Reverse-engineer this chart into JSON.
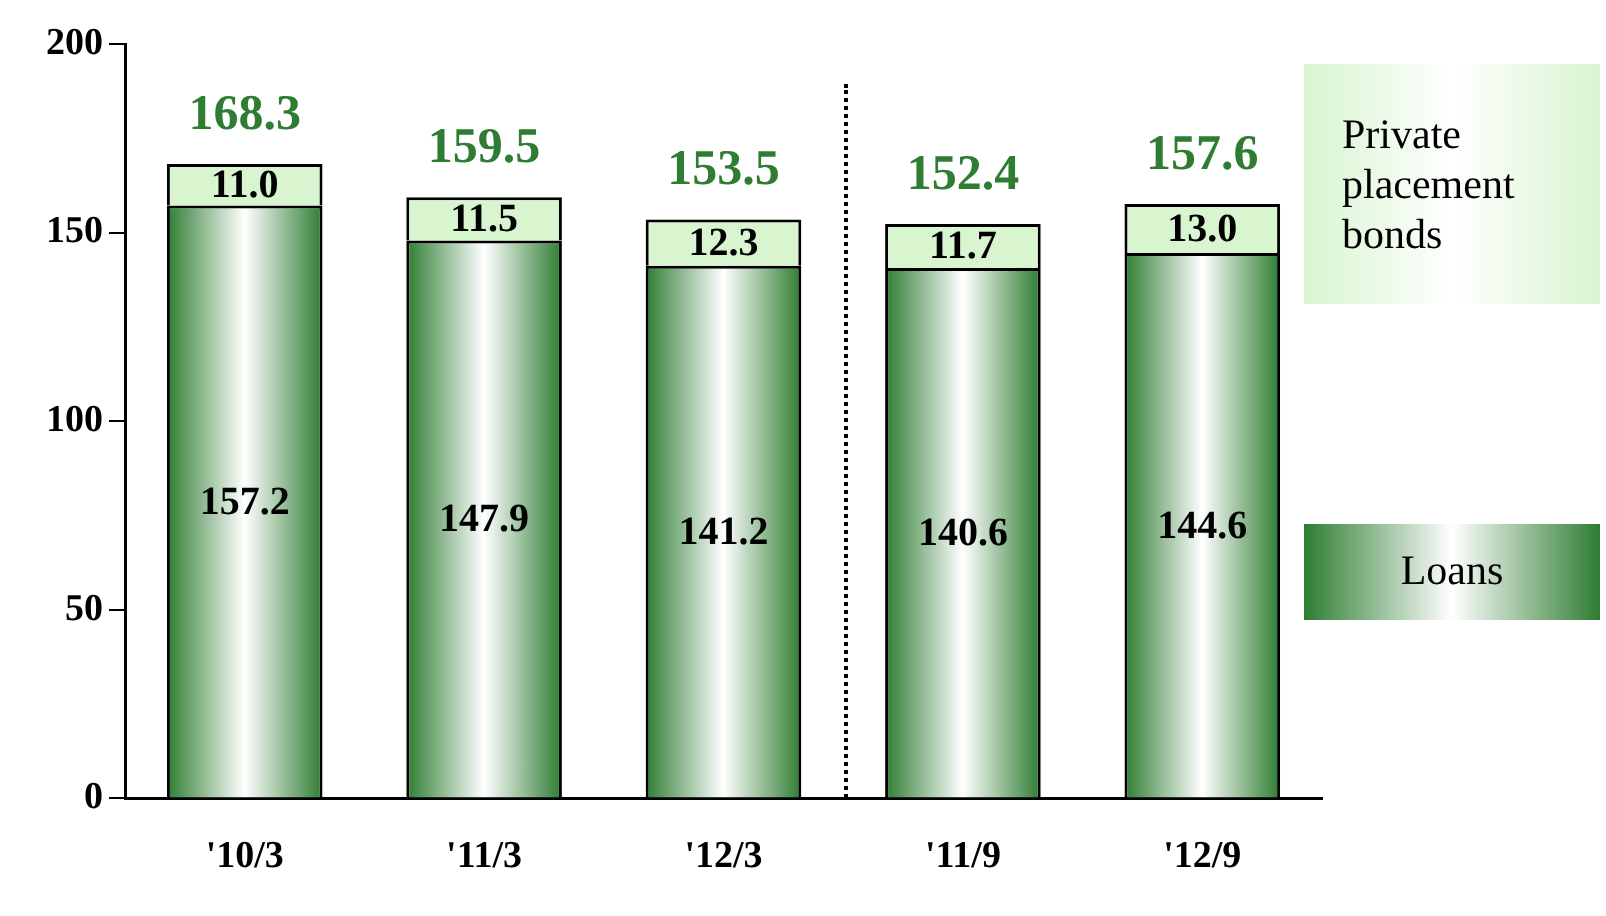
{
  "chart_data": {
    "type": "bar",
    "stacked": true,
    "categories": [
      "'10/3",
      "'11/3",
      "'12/3",
      "'11/9",
      "'12/9"
    ],
    "series": [
      {
        "name": "Loans",
        "color": "#2e7d32",
        "values": [
          157.2,
          147.9,
          141.2,
          140.6,
          144.6
        ],
        "value_labels": [
          "157.2",
          "147.9",
          "141.2",
          "140.6",
          "144.6"
        ]
      },
      {
        "name": "Private placement bonds",
        "color": "#d8f5d0",
        "values": [
          11.0,
          11.5,
          12.3,
          11.7,
          13.0
        ],
        "value_labels": [
          "11.0",
          "11.5",
          "12.3",
          "11.7",
          "13.0"
        ]
      }
    ],
    "totals": [
      "168.3",
      "159.5",
      "153.5",
      "152.4",
      "157.6"
    ],
    "ylim": [
      0,
      200
    ],
    "yticks": [
      0,
      50,
      100,
      150,
      200
    ],
    "grid": false,
    "legend": "right"
  }
}
